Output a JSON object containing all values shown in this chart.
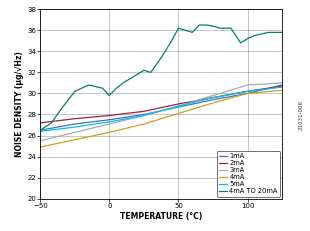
{
  "xlabel": "TEMPERATURE (°C)",
  "ylabel": "NOISE DENSITY (μg/√Hz)",
  "xlim": [
    -50,
    125
  ],
  "ylim": [
    20,
    38
  ],
  "xticks": [
    -50,
    0,
    50,
    100
  ],
  "yticks": [
    20,
    22,
    24,
    26,
    28,
    30,
    32,
    34,
    36,
    38
  ],
  "side_label": "21031-006",
  "series": [
    {
      "label": "1mA",
      "color": "#4472C4",
      "linewidth": 0.9,
      "x": [
        -50,
        -25,
        0,
        25,
        50,
        75,
        100,
        125
      ],
      "y": [
        26.5,
        27.1,
        27.5,
        28.0,
        28.7,
        29.4,
        30.0,
        30.8
      ]
    },
    {
      "label": "2mA",
      "color": "#9B2335",
      "linewidth": 0.9,
      "x": [
        -50,
        -25,
        0,
        25,
        50,
        75,
        100,
        125
      ],
      "y": [
        27.2,
        27.6,
        27.9,
        28.3,
        29.0,
        29.6,
        30.2,
        30.7
      ]
    },
    {
      "label": "3mA",
      "color": "#A9A9A9",
      "linewidth": 0.9,
      "x": [
        -50,
        -25,
        0,
        25,
        50,
        75,
        100,
        125
      ],
      "y": [
        25.5,
        26.3,
        27.1,
        27.9,
        28.8,
        29.8,
        30.8,
        31.0
      ]
    },
    {
      "label": "4mA",
      "color": "#C8A020",
      "linewidth": 0.9,
      "x": [
        -50,
        -25,
        0,
        25,
        50,
        75,
        100,
        125
      ],
      "y": [
        24.9,
        25.6,
        26.3,
        27.1,
        28.1,
        29.1,
        30.0,
        30.3
      ]
    },
    {
      "label": "5mA",
      "color": "#00C0F0",
      "linewidth": 0.9,
      "x": [
        -50,
        -25,
        0,
        25,
        50,
        75,
        100,
        125
      ],
      "y": [
        26.4,
        26.8,
        27.3,
        27.9,
        28.8,
        29.6,
        30.2,
        30.6
      ]
    },
    {
      "label": "4mA TO 20mA",
      "color": "#008070",
      "linewidth": 0.9,
      "x": [
        -50,
        -42,
        -35,
        -25,
        -15,
        -5,
        0,
        5,
        10,
        20,
        25,
        30,
        38,
        45,
        50,
        55,
        60,
        65,
        70,
        75,
        80,
        88,
        95,
        100,
        105,
        115,
        125
      ],
      "y": [
        26.5,
        27.2,
        28.5,
        30.2,
        30.8,
        30.5,
        29.8,
        30.5,
        31.0,
        31.8,
        32.2,
        32.0,
        33.5,
        35.0,
        36.2,
        36.0,
        35.8,
        36.5,
        36.5,
        36.4,
        36.2,
        36.2,
        34.8,
        35.2,
        35.5,
        35.8,
        35.8
      ]
    }
  ],
  "legend_loc": "lower right",
  "bg_color": "#ffffff",
  "label_fontsize": 5.5,
  "tick_fontsize": 5.0,
  "legend_fontsize": 4.8
}
